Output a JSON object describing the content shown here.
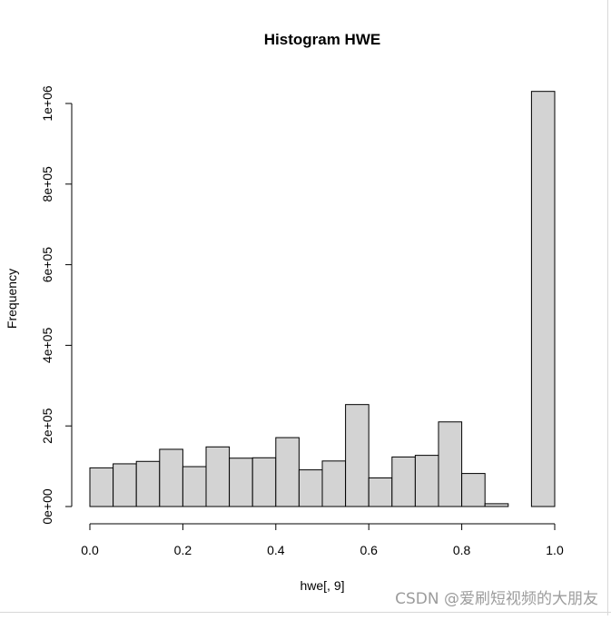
{
  "watermark": "CSDN @爱刷短视频的大朋友",
  "colors": {
    "bar_fill": "#d3d3d3",
    "bar_stroke": "#000000",
    "text": "#000000"
  },
  "chart_data": {
    "type": "bar",
    "title": "Histogram HWE",
    "xlabel": "hwe[, 9]",
    "ylabel": "Frequency",
    "bin_edges": [
      0.0,
      0.05,
      0.1,
      0.15,
      0.2,
      0.25,
      0.3,
      0.35,
      0.4,
      0.45,
      0.5,
      0.55,
      0.6,
      0.65,
      0.7,
      0.75,
      0.8,
      0.85,
      0.9,
      0.95,
      1.0
    ],
    "values": [
      96000,
      106000,
      112000,
      142000,
      99000,
      148000,
      120000,
      121000,
      171000,
      91000,
      113000,
      253000,
      71000,
      123000,
      127000,
      210000,
      82000,
      7000,
      0,
      1030000
    ],
    "xlim": [
      0,
      1
    ],
    "ylim": [
      0,
      1030000
    ],
    "x_ticks": [
      0.0,
      0.2,
      0.4,
      0.6,
      0.8,
      1.0
    ],
    "x_tick_labels": [
      "0.0",
      "0.2",
      "0.4",
      "0.6",
      "0.8",
      "1.0"
    ],
    "y_ticks": [
      0,
      200000,
      400000,
      600000,
      800000,
      1000000
    ],
    "y_tick_labels": [
      "0e+00",
      "2e+05",
      "4e+05",
      "6e+05",
      "8e+05",
      "1e+06"
    ],
    "grid": false,
    "legend": "none"
  }
}
